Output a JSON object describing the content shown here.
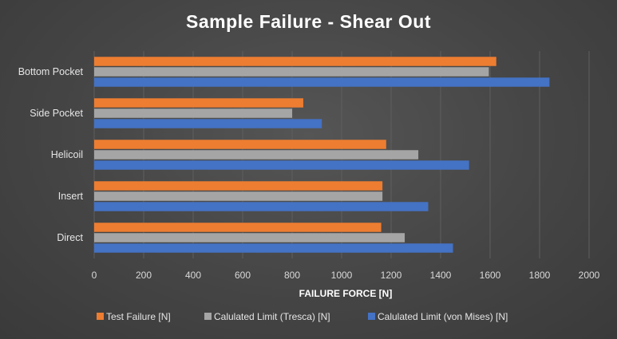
{
  "chart_data": {
    "type": "bar",
    "orientation": "horizontal",
    "title": "Sample Failure - Shear Out",
    "xlabel": "FAILURE FORCE [N]",
    "ylabel": "",
    "xlim": [
      0,
      2000
    ],
    "xticks": [
      "0",
      "200",
      "400",
      "600",
      "800",
      "1000",
      "1200",
      "1400",
      "1600",
      "1800",
      "2000"
    ],
    "categories": [
      "Bottom Pocket",
      "Side Pocket",
      "Helicoil",
      "Insert",
      "Direct"
    ],
    "series": [
      {
        "name": "Test Failure [N]",
        "color": "#ed7d31",
        "values": [
          1625,
          845,
          1180,
          1165,
          1160
        ]
      },
      {
        "name": "Calulated Limit (Tresca) [N]",
        "color": "#a5a5a5",
        "values": [
          1595,
          800,
          1310,
          1165,
          1255
        ]
      },
      {
        "name": "Calulated Limit (von Mises) [N]",
        "color": "#4472c4",
        "values": [
          1840,
          920,
          1515,
          1350,
          1450
        ]
      }
    ],
    "grid": true,
    "legend": "bottom"
  }
}
